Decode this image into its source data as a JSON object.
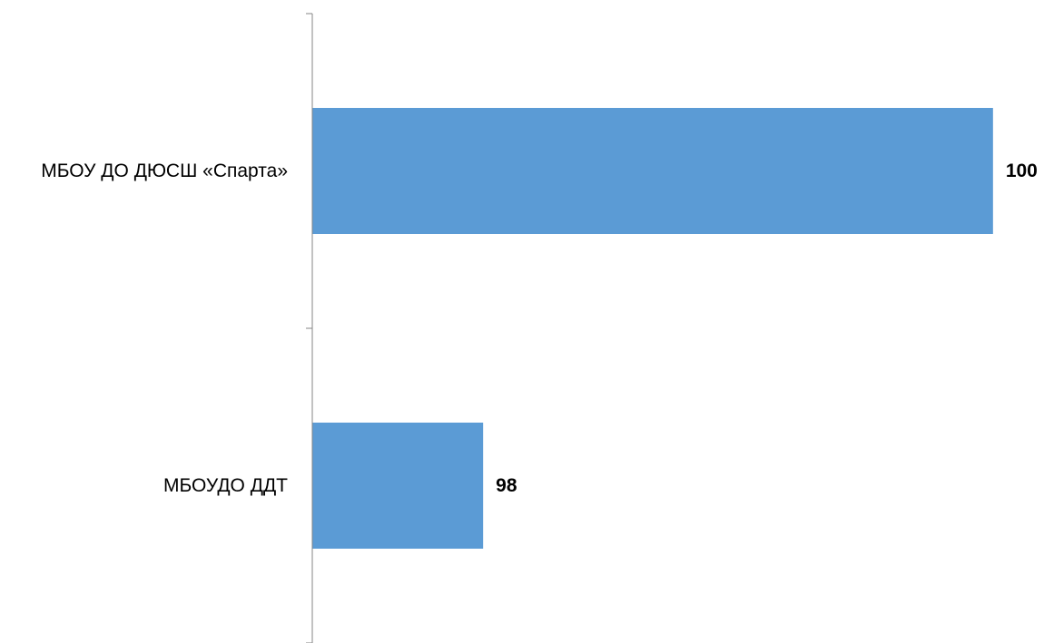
{
  "chart_data": {
    "type": "bar",
    "orientation": "horizontal",
    "categories": [
      "МБОУ ДО ДЮСШ «Спарта»",
      "МБОУДО ДДТ"
    ],
    "values": [
      100,
      98
    ],
    "data_labels": [
      "100",
      "98"
    ],
    "xlim": [
      97.33,
      100.2
    ],
    "bar_color": "#5B9BD5",
    "axis_color": "#868686",
    "title": "",
    "xlabel": "",
    "ylabel": "",
    "grid": false,
    "legend": "none"
  }
}
